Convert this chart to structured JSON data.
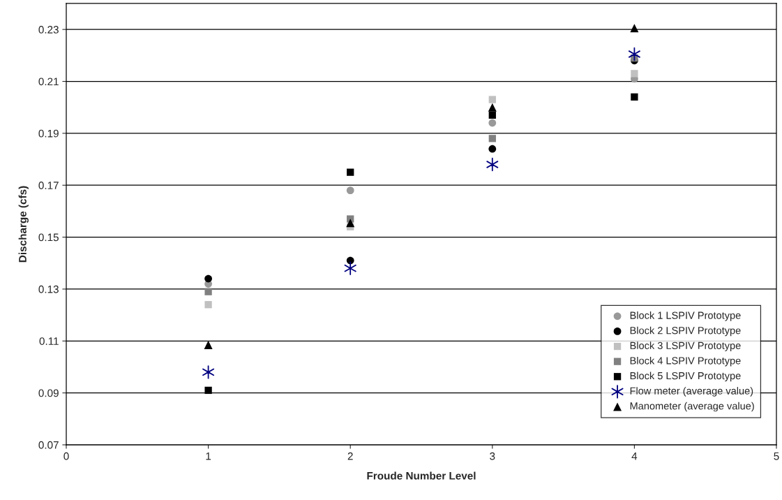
{
  "chart_data": {
    "type": "scatter",
    "xlabel": "Froude Number Level",
    "ylabel": "Discharge (cfs)",
    "x": [
      1,
      2,
      3,
      4
    ],
    "series": [
      {
        "name": "Block 1 LSPIV Prototype",
        "color": "#999999",
        "marker": "circle",
        "values": [
          0.132,
          0.168,
          0.194,
          0.211
        ]
      },
      {
        "name": "Block 2 LSPIV Prototype",
        "color": "#000000",
        "marker": "circle",
        "values": [
          0.134,
          0.141,
          0.184,
          0.218
        ]
      },
      {
        "name": "Block 3 LSPIV Prototype",
        "color": "#c0c0c0",
        "marker": "square",
        "values": [
          0.124,
          0.154,
          0.203,
          0.213
        ]
      },
      {
        "name": "Block 4 LSPIV Prototype",
        "color": "#808080",
        "marker": "square",
        "values": [
          0.129,
          0.157,
          0.188,
          0.219
        ]
      },
      {
        "name": "Block 5 LSPIV Prototype",
        "color": "#000000",
        "marker": "square",
        "values": [
          0.091,
          0.175,
          0.197,
          0.204
        ]
      },
      {
        "name": "Flow meter (average value)",
        "color": "#000080",
        "marker": "cross",
        "values": [
          0.098,
          0.138,
          0.178,
          0.2205
        ]
      },
      {
        "name": "Manometer (average value)",
        "color": "#000000",
        "marker": "triangle",
        "values": [
          0.1085,
          0.1555,
          0.2,
          0.2305
        ]
      }
    ],
    "xlim": [
      0,
      5
    ],
    "xticks": [
      0,
      1,
      2,
      3,
      4,
      5
    ],
    "ylim": [
      0.07,
      0.24
    ],
    "yticks": [
      0.07,
      0.09,
      0.11,
      0.13,
      0.15,
      0.17,
      0.19,
      0.21,
      0.23
    ],
    "grid": "y",
    "legend": "bottom right"
  }
}
